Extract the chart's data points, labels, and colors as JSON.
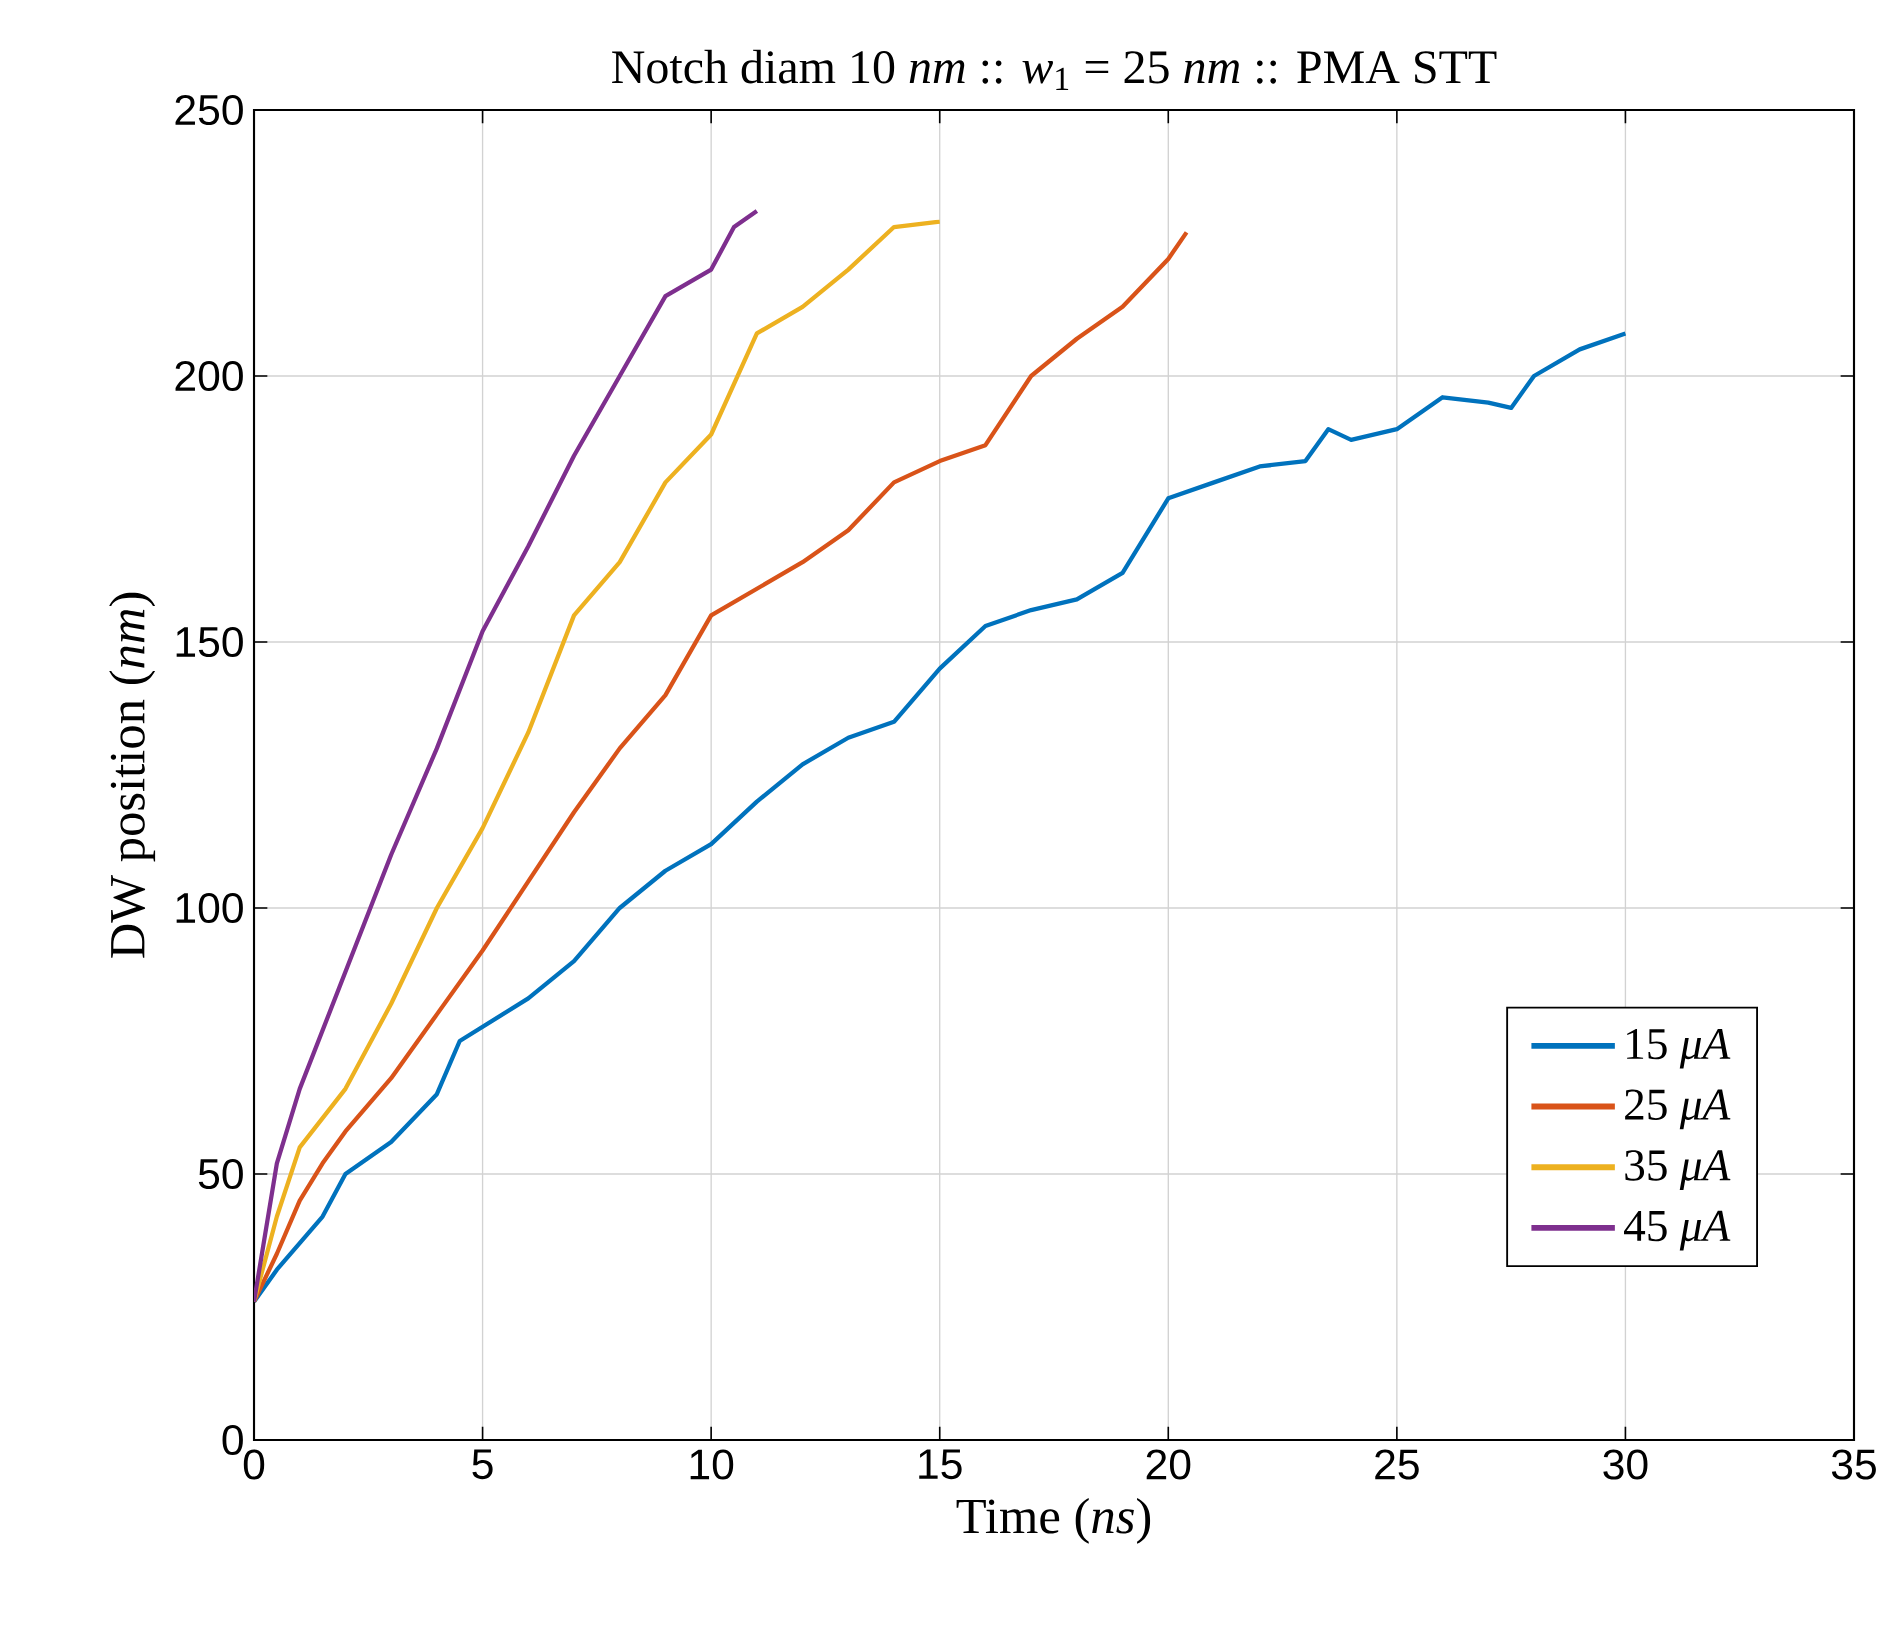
{
  "chart_data": {
    "type": "line",
    "title": "Notch diam 10 *nm* :: *w*$_{1}$ = 25 *nm* :: PMA STT",
    "xlabel": "Time (*ns*)",
    "ylabel": "DW position (*nm*)",
    "xlim": [
      0,
      35
    ],
    "ylim": [
      0,
      250
    ],
    "xticks": [
      0,
      5,
      10,
      15,
      20,
      25,
      30,
      35
    ],
    "yticks": [
      0,
      50,
      100,
      150,
      200,
      250
    ],
    "grid": true,
    "legend": "bottom right",
    "line_style": "solid",
    "marker": "none",
    "series": [
      {
        "name": "15 *μA*",
        "color": "#0072bd",
        "x": [
          0,
          0.5,
          1,
          1.5,
          2,
          3,
          4,
          4.5,
          6,
          7,
          8,
          9,
          10,
          11,
          12,
          13,
          14,
          15,
          16,
          17,
          18,
          19,
          20,
          21,
          22,
          23,
          23.5,
          24,
          25,
          26,
          27,
          27.5,
          28,
          29,
          30
        ],
        "values": [
          26,
          32,
          37,
          42,
          50,
          56,
          65,
          75,
          83,
          90,
          100,
          107,
          112,
          120,
          127,
          132,
          135,
          145,
          153,
          156,
          158,
          163,
          177,
          180,
          183,
          184,
          190,
          188,
          190,
          196,
          195,
          194,
          200,
          205,
          208
        ]
      },
      {
        "name": "25 *μA*",
        "color": "#d95319",
        "x": [
          0,
          0.5,
          1,
          1.5,
          2,
          3,
          4,
          5,
          6,
          7,
          8,
          9,
          10,
          11,
          12,
          13,
          14,
          15,
          16,
          17,
          18,
          19,
          20,
          20.4
        ],
        "values": [
          26,
          35,
          45,
          52,
          58,
          68,
          80,
          92,
          105,
          118,
          130,
          140,
          155,
          160,
          165,
          171,
          180,
          184,
          187,
          200,
          207,
          213,
          222,
          227
        ]
      },
      {
        "name": "35 *μA*",
        "color": "#edb120",
        "x": [
          0,
          0.5,
          1,
          2,
          3,
          4,
          5,
          6,
          7,
          8,
          9,
          10,
          11,
          12,
          13,
          14,
          15
        ],
        "values": [
          26,
          42,
          55,
          66,
          82,
          100,
          115,
          133,
          155,
          165,
          180,
          189,
          208,
          213,
          220,
          228,
          229
        ]
      },
      {
        "name": "45 *μA*",
        "color": "#7e2f8e",
        "x": [
          0,
          0.5,
          1,
          2,
          3,
          4,
          5,
          6,
          7,
          8,
          9,
          10,
          10.5,
          11
        ],
        "values": [
          26,
          52,
          66,
          88,
          110,
          130,
          152,
          168,
          185,
          200,
          215,
          220,
          228,
          231
        ]
      }
    ]
  }
}
